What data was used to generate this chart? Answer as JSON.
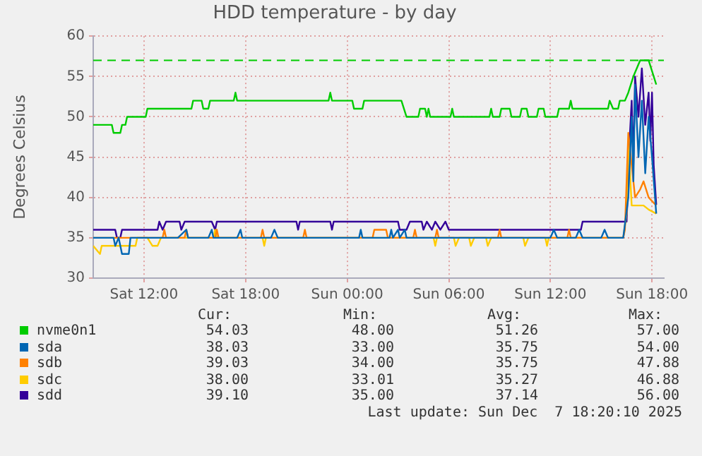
{
  "chart_data": {
    "type": "line",
    "title": "HDD temperature - by day",
    "ylabel": "Degrees Celsius",
    "xlim": [
      "2025-12-06T09:00",
      "2025-12-07T18:42"
    ],
    "xticks": [
      {
        "value": "2025-12-06T12:00",
        "label": "Sat 12:00"
      },
      {
        "value": "2025-12-06T18:00",
        "label": "Sat 18:00"
      },
      {
        "value": "2025-12-07T00:00",
        "label": "Sun 00:00"
      },
      {
        "value": "2025-12-07T06:00",
        "label": "Sun 06:00"
      },
      {
        "value": "2025-12-07T12:00",
        "label": "Sun 12:00"
      },
      {
        "value": "2025-12-07T18:00",
        "label": "Sun 18:00"
      }
    ],
    "ylim": [
      30,
      60
    ],
    "yticks": [
      30,
      35,
      40,
      45,
      50,
      55,
      60
    ],
    "grid": true,
    "legend": "bottom",
    "marker": "none",
    "line_style": "solid",
    "ref_lines": [
      {
        "axis": "y",
        "value": 57,
        "color": "#00cc00",
        "line_style": "dashed"
      }
    ],
    "series": [
      {
        "name": "nvme0n1",
        "color": "#00cc00",
        "x": [
          "2025-12-06T09:00",
          "2025-12-06T10:06",
          "2025-12-06T10:12",
          "2025-12-06T10:36",
          "2025-12-06T10:42",
          "2025-12-06T10:54",
          "2025-12-06T11:00",
          "2025-12-06T12:06",
          "2025-12-06T12:12",
          "2025-12-06T14:48",
          "2025-12-06T14:54",
          "2025-12-06T15:24",
          "2025-12-06T15:30",
          "2025-12-06T15:48",
          "2025-12-06T15:54",
          "2025-12-06T17:18",
          "2025-12-06T17:24",
          "2025-12-06T17:30",
          "2025-12-06T22:54",
          "2025-12-06T23:00",
          "2025-12-06T23:06",
          "2025-12-07T00:18",
          "2025-12-07T00:24",
          "2025-12-07T00:54",
          "2025-12-07T01:00",
          "2025-12-07T03:12",
          "2025-12-07T03:30",
          "2025-12-07T04:12",
          "2025-12-07T04:18",
          "2025-12-07T04:36",
          "2025-12-07T04:42",
          "2025-12-07T04:48",
          "2025-12-07T04:54",
          "2025-12-07T06:06",
          "2025-12-07T06:12",
          "2025-12-07T06:18",
          "2025-12-07T08:24",
          "2025-12-07T08:30",
          "2025-12-07T08:36",
          "2025-12-07T09:00",
          "2025-12-07T09:06",
          "2025-12-07T09:36",
          "2025-12-07T09:42",
          "2025-12-07T10:12",
          "2025-12-07T10:18",
          "2025-12-07T10:36",
          "2025-12-07T10:42",
          "2025-12-07T11:12",
          "2025-12-07T11:18",
          "2025-12-07T11:36",
          "2025-12-07T11:42",
          "2025-12-07T12:24",
          "2025-12-07T12:30",
          "2025-12-07T13:06",
          "2025-12-07T13:12",
          "2025-12-07T13:18",
          "2025-12-07T15:24",
          "2025-12-07T15:30",
          "2025-12-07T15:42",
          "2025-12-07T16:00",
          "2025-12-07T16:06",
          "2025-12-07T16:24",
          "2025-12-07T16:36",
          "2025-12-07T16:54",
          "2025-12-07T17:18",
          "2025-12-07T17:48",
          "2025-12-07T18:15"
        ],
        "values": [
          49,
          49,
          48,
          48,
          49,
          49,
          50,
          50,
          51,
          51,
          52,
          52,
          51,
          51,
          52,
          52,
          53,
          52,
          52,
          53,
          52,
          52,
          51,
          51,
          52,
          52,
          50,
          50,
          51,
          51,
          50,
          51,
          50,
          50,
          51,
          50,
          50,
          51,
          50,
          50,
          51,
          51,
          50,
          50,
          51,
          51,
          50,
          50,
          51,
          51,
          50,
          50,
          51,
          51,
          52,
          51,
          51,
          52,
          51,
          51,
          52,
          52,
          53,
          55,
          57,
          57,
          54
        ]
      },
      {
        "name": "sda",
        "color": "#0066b3",
        "x": [
          "2025-12-06T09:00",
          "2025-12-06T10:12",
          "2025-12-06T10:18",
          "2025-12-06T10:30",
          "2025-12-06T10:42",
          "2025-12-06T11:06",
          "2025-12-06T11:12",
          "2025-12-06T14:00",
          "2025-12-06T14:30",
          "2025-12-06T14:36",
          "2025-12-06T15:48",
          "2025-12-06T16:00",
          "2025-12-06T16:06",
          "2025-12-06T17:30",
          "2025-12-06T17:42",
          "2025-12-06T17:48",
          "2025-12-06T19:30",
          "2025-12-06T19:42",
          "2025-12-06T19:54",
          "2025-12-07T00:42",
          "2025-12-07T00:48",
          "2025-12-07T00:54",
          "2025-12-07T02:30",
          "2025-12-07T02:36",
          "2025-12-07T02:42",
          "2025-12-07T03:00",
          "2025-12-07T03:06",
          "2025-12-07T03:24",
          "2025-12-07T03:30",
          "2025-12-07T12:00",
          "2025-12-07T12:12",
          "2025-12-07T12:24",
          "2025-12-07T13:30",
          "2025-12-07T13:42",
          "2025-12-07T13:54",
          "2025-12-07T15:00",
          "2025-12-07T15:12",
          "2025-12-07T15:24",
          "2025-12-07T16:18",
          "2025-12-07T16:36",
          "2025-12-07T16:48",
          "2025-12-07T16:54",
          "2025-12-07T17:00",
          "2025-12-07T17:12",
          "2025-12-07T17:24",
          "2025-12-07T17:36",
          "2025-12-07T17:48",
          "2025-12-07T18:00",
          "2025-12-07T18:15"
        ],
        "values": [
          35,
          35,
          34,
          35,
          33,
          33,
          35,
          35,
          36,
          35,
          35,
          36,
          35,
          35,
          36,
          35,
          35,
          36,
          35,
          35,
          36,
          35,
          35,
          36,
          35,
          36,
          35,
          36,
          35,
          35,
          36,
          35,
          35,
          36,
          35,
          35,
          36,
          35,
          35,
          40,
          50,
          42,
          54,
          45,
          52,
          43,
          50,
          45,
          38
        ]
      },
      {
        "name": "sdb",
        "color": "#ff8000",
        "x": [
          "2025-12-06T09:00",
          "2025-12-06T13:06",
          "2025-12-06T13:12",
          "2025-12-06T13:18",
          "2025-12-06T14:24",
          "2025-12-06T14:30",
          "2025-12-06T14:36",
          "2025-12-06T16:12",
          "2025-12-06T16:18",
          "2025-12-06T16:24",
          "2025-12-06T18:54",
          "2025-12-06T19:00",
          "2025-12-06T19:06",
          "2025-12-06T21:24",
          "2025-12-06T21:30",
          "2025-12-06T21:36",
          "2025-12-07T01:30",
          "2025-12-07T01:36",
          "2025-12-07T02:18",
          "2025-12-07T02:24",
          "2025-12-07T03:54",
          "2025-12-07T04:00",
          "2025-12-07T04:06",
          "2025-12-07T05:12",
          "2025-12-07T05:18",
          "2025-12-07T05:24",
          "2025-12-07T08:54",
          "2025-12-07T09:00",
          "2025-12-07T09:06",
          "2025-12-07T13:00",
          "2025-12-07T13:06",
          "2025-12-07T13:12",
          "2025-12-07T16:18",
          "2025-12-07T16:24",
          "2025-12-07T16:36",
          "2025-12-07T16:48",
          "2025-12-07T17:00",
          "2025-12-07T17:18",
          "2025-12-07T17:30",
          "2025-12-07T17:48",
          "2025-12-07T18:15"
        ],
        "values": [
          35,
          35,
          36,
          35,
          35,
          36,
          35,
          35,
          36,
          35,
          35,
          36,
          35,
          35,
          36,
          35,
          35,
          36,
          36,
          35,
          35,
          36,
          35,
          35,
          36,
          35,
          35,
          36,
          35,
          35,
          36,
          35,
          35,
          36,
          48,
          44,
          40,
          41,
          42,
          40,
          39
        ]
      },
      {
        "name": "sdc",
        "color": "#ffcc00",
        "x": [
          "2025-12-06T09:00",
          "2025-12-06T09:24",
          "2025-12-06T09:30",
          "2025-12-06T11:30",
          "2025-12-06T11:36",
          "2025-12-06T12:12",
          "2025-12-06T12:30",
          "2025-12-06T12:48",
          "2025-12-06T13:00",
          "2025-12-06T16:06",
          "2025-12-06T16:12",
          "2025-12-06T16:18",
          "2025-12-06T19:00",
          "2025-12-06T19:06",
          "2025-12-06T19:12",
          "2025-12-07T05:06",
          "2025-12-07T05:12",
          "2025-12-07T05:18",
          "2025-12-07T06:18",
          "2025-12-07T06:24",
          "2025-12-07T06:36",
          "2025-12-07T07:12",
          "2025-12-07T07:18",
          "2025-12-07T07:30",
          "2025-12-07T08:12",
          "2025-12-07T08:18",
          "2025-12-07T08:30",
          "2025-12-07T10:24",
          "2025-12-07T10:30",
          "2025-12-07T10:42",
          "2025-12-07T11:42",
          "2025-12-07T11:48",
          "2025-12-07T11:54",
          "2025-12-07T16:18",
          "2025-12-07T16:30",
          "2025-12-07T16:36",
          "2025-12-07T16:48",
          "2025-12-07T17:30",
          "2025-12-07T17:48",
          "2025-12-07T18:15"
        ],
        "values": [
          34,
          33,
          34,
          34,
          35,
          35,
          34,
          34,
          35,
          35,
          36,
          35,
          35,
          34,
          35,
          35,
          34,
          35,
          35,
          34,
          35,
          35,
          34,
          35,
          35,
          34,
          35,
          35,
          34,
          35,
          35,
          34,
          35,
          35,
          38,
          47,
          39,
          39,
          38.5,
          38
        ]
      },
      {
        "name": "sdd",
        "color": "#330099",
        "x": [
          "2025-12-06T09:00",
          "2025-12-06T10:18",
          "2025-12-06T10:24",
          "2025-12-06T10:36",
          "2025-12-06T10:42",
          "2025-12-06T12:48",
          "2025-12-06T12:54",
          "2025-12-06T13:06",
          "2025-12-06T13:18",
          "2025-12-06T14:06",
          "2025-12-06T14:12",
          "2025-12-06T14:24",
          "2025-12-06T16:00",
          "2025-12-06T16:12",
          "2025-12-06T16:18",
          "2025-12-06T21:00",
          "2025-12-06T21:06",
          "2025-12-06T21:12",
          "2025-12-06T23:00",
          "2025-12-06T23:06",
          "2025-12-06T23:12",
          "2025-12-07T03:00",
          "2025-12-07T03:06",
          "2025-12-07T03:30",
          "2025-12-07T03:42",
          "2025-12-07T04:24",
          "2025-12-07T04:30",
          "2025-12-07T04:42",
          "2025-12-07T05:00",
          "2025-12-07T05:12",
          "2025-12-07T05:30",
          "2025-12-07T05:48",
          "2025-12-07T06:00",
          "2025-12-07T13:48",
          "2025-12-07T13:54",
          "2025-12-07T16:30",
          "2025-12-07T16:42",
          "2025-12-07T16:48",
          "2025-12-07T16:54",
          "2025-12-07T17:00",
          "2025-12-07T17:12",
          "2025-12-07T17:24",
          "2025-12-07T17:36",
          "2025-12-07T17:48",
          "2025-12-07T17:54",
          "2025-12-07T18:00",
          "2025-12-07T18:06",
          "2025-12-07T18:15"
        ],
        "values": [
          36,
          36,
          35,
          35,
          36,
          36,
          37,
          36,
          37,
          37,
          36,
          37,
          37,
          36,
          37,
          37,
          36,
          37,
          37,
          36,
          37,
          37,
          36,
          36,
          37,
          37,
          36,
          37,
          36,
          37,
          36,
          37,
          36,
          36,
          37,
          37,
          48,
          52,
          44,
          55,
          50,
          56,
          49,
          53,
          47,
          53,
          44,
          39.1
        ]
      }
    ],
    "annotations": [
      "Cur:",
      "Min:",
      "Avg:",
      "Max:",
      "54.03",
      "48.00",
      "51.26",
      "57.00",
      "38.03",
      "33.00",
      "35.75",
      "54.00",
      "39.03",
      "34.00",
      "35.75",
      "47.88",
      "38.00",
      "33.01",
      "35.27",
      "46.88",
      "39.10",
      "35.00",
      "37.14",
      "56.00",
      "Last update: Sun Dec  7 18:20:10 2025"
    ]
  }
}
